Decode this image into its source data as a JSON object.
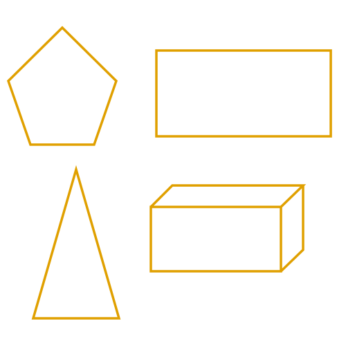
{
  "diagram": {
    "stroke_color": "#E0A000",
    "background_color": "#FFFFFF",
    "shapes": [
      {
        "kind": "pentagon"
      },
      {
        "kind": "rectangle"
      },
      {
        "kind": "triangle"
      },
      {
        "kind": "rectangular-prism"
      }
    ]
  }
}
